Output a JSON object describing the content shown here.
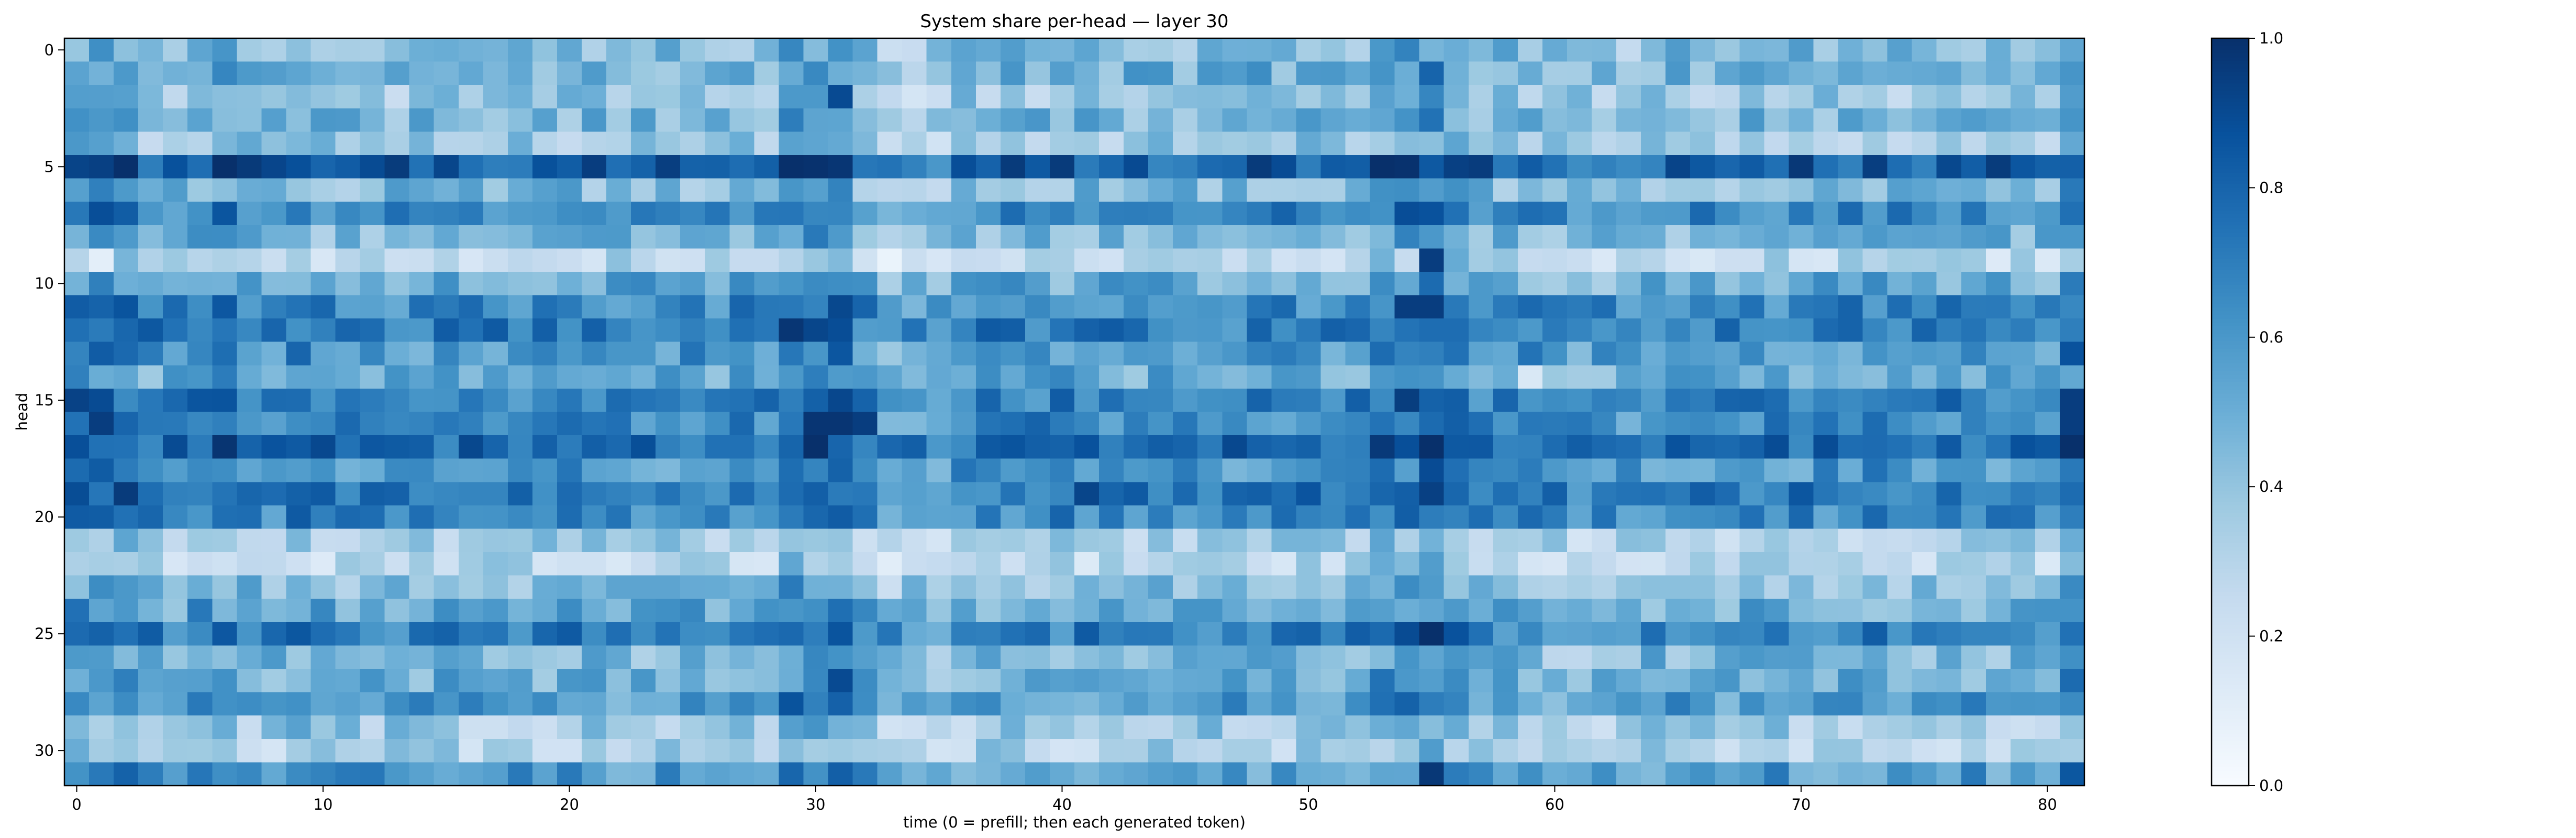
{
  "chart_data": {
    "type": "heatmap",
    "title": "System share per-head — layer 30",
    "xlabel": "time (0 = prefill; then each generated token)",
    "ylabel": "head",
    "x_range": [
      0,
      81
    ],
    "y_range": [
      0,
      31
    ],
    "y_direction": "top-to-bottom",
    "x_ticks": [
      0,
      10,
      20,
      30,
      40,
      50,
      60,
      70,
      80
    ],
    "y_ticks": [
      0,
      5,
      10,
      15,
      20,
      25,
      30
    ],
    "colormap": "Blues",
    "color_range": [
      0.0,
      1.0
    ],
    "colorbar_ticks": [
      0.0,
      0.2,
      0.4,
      0.6,
      0.8,
      1.0
    ],
    "colorbar_labels": [
      "0.0",
      "0.2",
      "0.4",
      "0.6",
      "0.8",
      "1.0"
    ],
    "head_baselines": [
      0.44,
      0.5,
      0.38,
      0.46,
      0.38,
      0.82,
      0.45,
      0.66,
      0.46,
      0.28,
      0.52,
      0.66,
      0.7,
      0.6,
      0.52,
      0.7,
      0.66,
      0.78,
      0.6,
      0.72,
      0.66,
      0.34,
      0.28,
      0.44,
      0.52,
      0.7,
      0.46,
      0.5,
      0.58,
      0.36,
      0.32,
      0.58
    ],
    "time_offsets": [
      {
        "t": [
          0,
          2
        ],
        "offset": 0.1
      },
      {
        "t": [
          5,
          6
        ],
        "offset": 0.06
      },
      {
        "t": [
          9,
          9
        ],
        "offset": 0.06
      },
      {
        "t": [
          29,
          31
        ],
        "offset": 0.14
      },
      {
        "t": [
          33,
          35
        ],
        "offset": -0.08
      },
      {
        "t": [
          53,
          54
        ],
        "offset": 0.1
      },
      {
        "t": [
          55,
          55
        ],
        "offset": 0.16
      },
      {
        "t": [
          56,
          56
        ],
        "offset": 0.1
      },
      {
        "t": [
          60,
          63
        ],
        "offset": -0.04
      },
      {
        "t": [
          81,
          81
        ],
        "offset": 0.14
      }
    ],
    "notable_cells": [
      {
        "t": 31,
        "head": 2,
        "value": 0.9
      },
      {
        "t": 55,
        "head": 1,
        "value": 0.8
      },
      {
        "t": 55,
        "head": 9,
        "value": 0.95
      },
      {
        "t": 54,
        "head": 11,
        "value": 0.95
      },
      {
        "t": 55,
        "head": 11,
        "value": 0.95
      },
      {
        "t": 30,
        "head": 16,
        "value": 0.98
      },
      {
        "t": 31,
        "head": 16,
        "value": 0.98
      },
      {
        "t": 32,
        "head": 16,
        "value": 0.95
      },
      {
        "t": 1,
        "head": 16,
        "value": 0.95
      },
      {
        "t": 81,
        "head": 15,
        "value": 0.95
      },
      {
        "t": 81,
        "head": 16,
        "value": 0.95
      },
      {
        "t": 41,
        "head": 19,
        "value": 0.92
      },
      {
        "t": 55,
        "head": 31,
        "value": 0.97
      },
      {
        "t": 31,
        "head": 27,
        "value": 0.9
      },
      {
        "t": 1,
        "head": 9,
        "value": 0.1
      },
      {
        "t": 59,
        "head": 14,
        "value": 0.15
      }
    ]
  }
}
